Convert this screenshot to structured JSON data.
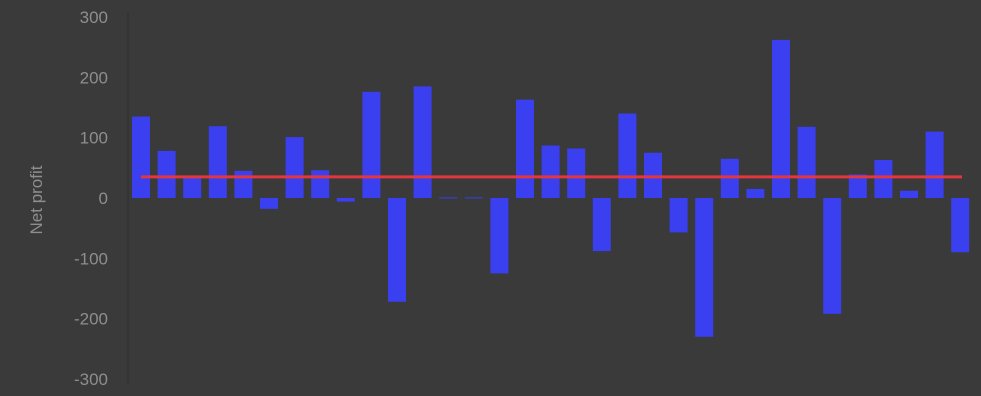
{
  "chart_data": {
    "type": "bar",
    "ylabel": "Net profit",
    "ylim": [
      -300,
      300
    ],
    "yticks": [
      "300",
      "200",
      "100",
      "0",
      "-100",
      "-200",
      "-300"
    ],
    "values": [
      135,
      78,
      37,
      119,
      45,
      -18,
      101,
      46,
      -6,
      176,
      -172,
      185,
      1,
      1,
      -125,
      163,
      87,
      82,
      -88,
      140,
      75,
      -57,
      -230,
      65,
      15,
      262,
      118,
      -192,
      39,
      63,
      12,
      110,
      -90
    ],
    "reference_line": 35,
    "grid": false,
    "legend": "none",
    "colors": {
      "bar": "#3a3ff0",
      "line": "#e2373f",
      "background": "#3a3a3a",
      "tick_text": "#8e8e8e",
      "axis": "#2f2f2f"
    }
  }
}
